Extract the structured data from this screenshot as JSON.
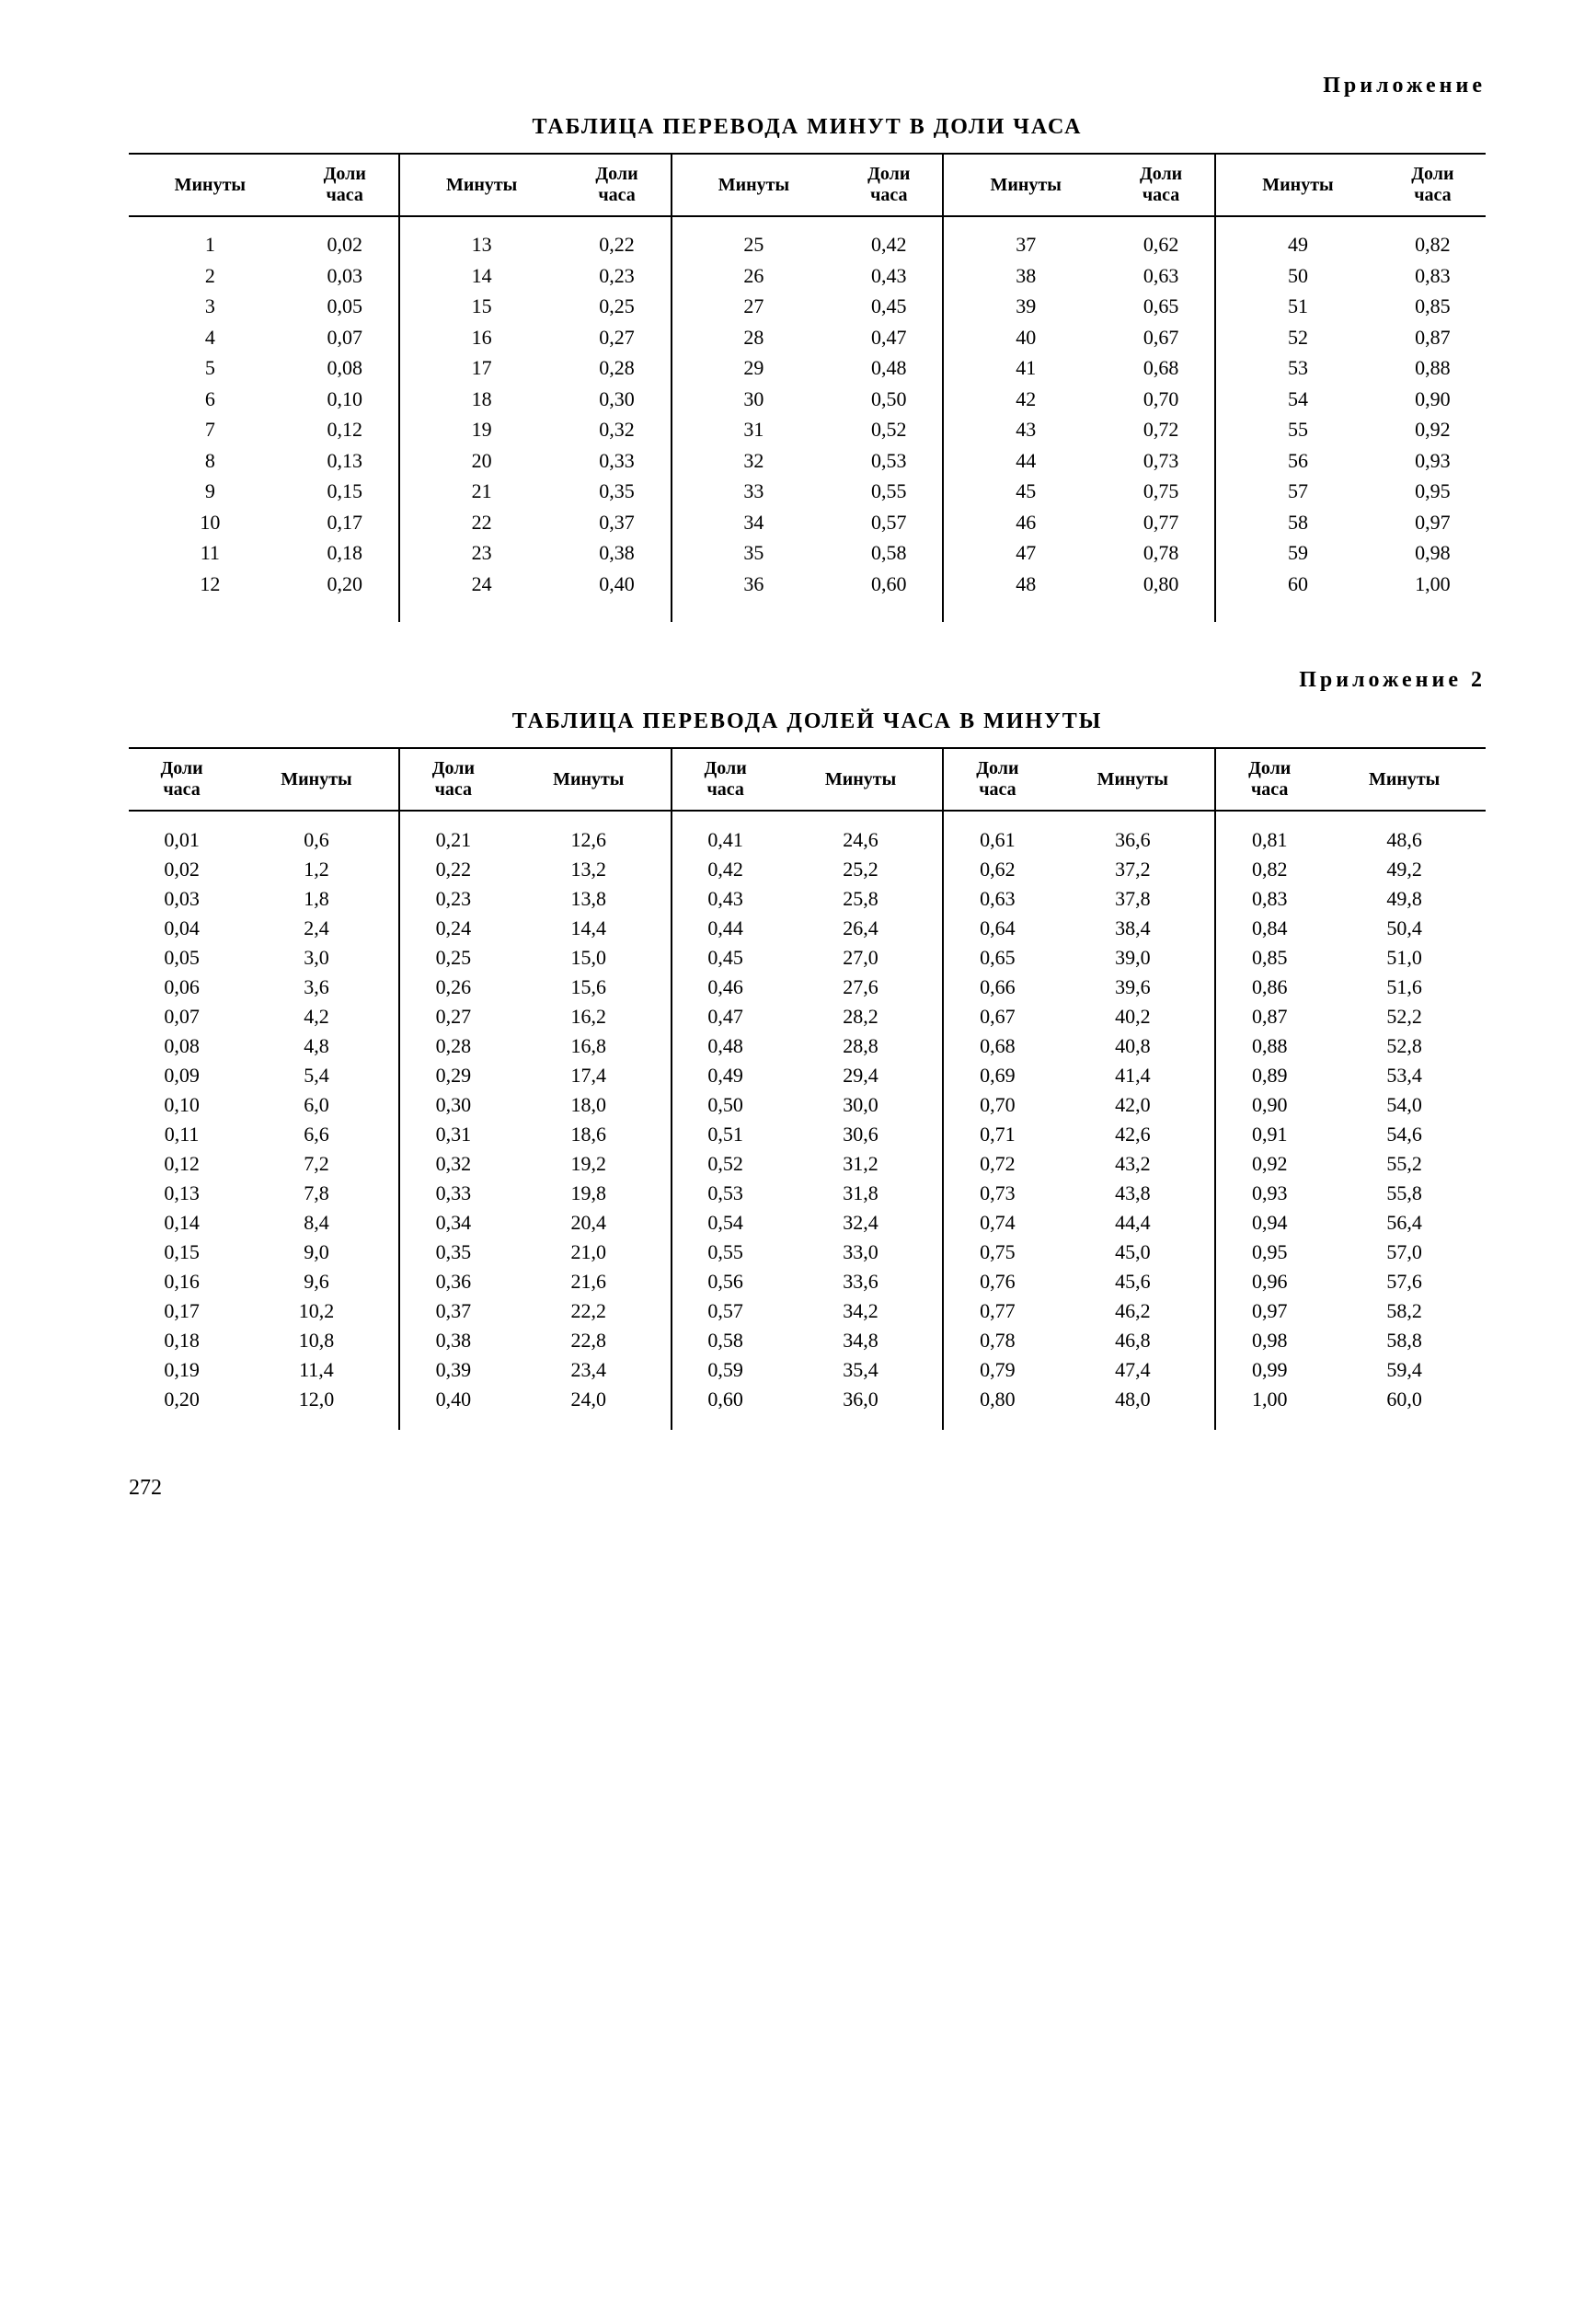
{
  "page_number": "272",
  "appendix1_label": "Приложение",
  "appendix2_label": "Приложение 2",
  "table1": {
    "title": "ТАБЛИЦА ПЕРЕВОДА МИНУТ В ДОЛИ ЧАСА",
    "col_min": "Минуты",
    "col_frac": "Доли часа",
    "groups": [
      [
        [
          "1",
          "0,02"
        ],
        [
          "2",
          "0,03"
        ],
        [
          "3",
          "0,05"
        ],
        [
          "4",
          "0,07"
        ],
        [
          "5",
          "0,08"
        ],
        [
          "6",
          "0,10"
        ],
        [
          "7",
          "0,12"
        ],
        [
          "8",
          "0,13"
        ],
        [
          "9",
          "0,15"
        ],
        [
          "10",
          "0,17"
        ],
        [
          "11",
          "0,18"
        ],
        [
          "12",
          "0,20"
        ]
      ],
      [
        [
          "13",
          "0,22"
        ],
        [
          "14",
          "0,23"
        ],
        [
          "15",
          "0,25"
        ],
        [
          "16",
          "0,27"
        ],
        [
          "17",
          "0,28"
        ],
        [
          "18",
          "0,30"
        ],
        [
          "19",
          "0,32"
        ],
        [
          "20",
          "0,33"
        ],
        [
          "21",
          "0,35"
        ],
        [
          "22",
          "0,37"
        ],
        [
          "23",
          "0,38"
        ],
        [
          "24",
          "0,40"
        ]
      ],
      [
        [
          "25",
          "0,42"
        ],
        [
          "26",
          "0,43"
        ],
        [
          "27",
          "0,45"
        ],
        [
          "28",
          "0,47"
        ],
        [
          "29",
          "0,48"
        ],
        [
          "30",
          "0,50"
        ],
        [
          "31",
          "0,52"
        ],
        [
          "32",
          "0,53"
        ],
        [
          "33",
          "0,55"
        ],
        [
          "34",
          "0,57"
        ],
        [
          "35",
          "0,58"
        ],
        [
          "36",
          "0,60"
        ]
      ],
      [
        [
          "37",
          "0,62"
        ],
        [
          "38",
          "0,63"
        ],
        [
          "39",
          "0,65"
        ],
        [
          "40",
          "0,67"
        ],
        [
          "41",
          "0,68"
        ],
        [
          "42",
          "0,70"
        ],
        [
          "43",
          "0,72"
        ],
        [
          "44",
          "0,73"
        ],
        [
          "45",
          "0,75"
        ],
        [
          "46",
          "0,77"
        ],
        [
          "47",
          "0,78"
        ],
        [
          "48",
          "0,80"
        ]
      ],
      [
        [
          "49",
          "0,82"
        ],
        [
          "50",
          "0,83"
        ],
        [
          "51",
          "0,85"
        ],
        [
          "52",
          "0,87"
        ],
        [
          "53",
          "0,88"
        ],
        [
          "54",
          "0,90"
        ],
        [
          "55",
          "0,92"
        ],
        [
          "56",
          "0,93"
        ],
        [
          "57",
          "0,95"
        ],
        [
          "58",
          "0,97"
        ],
        [
          "59",
          "0,98"
        ],
        [
          "60",
          "1,00"
        ]
      ]
    ]
  },
  "table2": {
    "title": "ТАБЛИЦА ПЕРЕВОДА ДОЛЕЙ ЧАСА В МИНУТЫ",
    "col_frac": "Доли часа",
    "col_min": "Минуты",
    "groups": [
      [
        [
          "0,01",
          "0,6"
        ],
        [
          "0,02",
          "1,2"
        ],
        [
          "0,03",
          "1,8"
        ],
        [
          "0,04",
          "2,4"
        ],
        [
          "0,05",
          "3,0"
        ],
        [
          "0,06",
          "3,6"
        ],
        [
          "0,07",
          "4,2"
        ],
        [
          "0,08",
          "4,8"
        ],
        [
          "0,09",
          "5,4"
        ],
        [
          "0,10",
          "6,0"
        ],
        [
          "0,11",
          "6,6"
        ],
        [
          "0,12",
          "7,2"
        ],
        [
          "0,13",
          "7,8"
        ],
        [
          "0,14",
          "8,4"
        ],
        [
          "0,15",
          "9,0"
        ],
        [
          "0,16",
          "9,6"
        ],
        [
          "0,17",
          "10,2"
        ],
        [
          "0,18",
          "10,8"
        ],
        [
          "0,19",
          "11,4"
        ],
        [
          "0,20",
          "12,0"
        ]
      ],
      [
        [
          "0,21",
          "12,6"
        ],
        [
          "0,22",
          "13,2"
        ],
        [
          "0,23",
          "13,8"
        ],
        [
          "0,24",
          "14,4"
        ],
        [
          "0,25",
          "15,0"
        ],
        [
          "0,26",
          "15,6"
        ],
        [
          "0,27",
          "16,2"
        ],
        [
          "0,28",
          "16,8"
        ],
        [
          "0,29",
          "17,4"
        ],
        [
          "0,30",
          "18,0"
        ],
        [
          "0,31",
          "18,6"
        ],
        [
          "0,32",
          "19,2"
        ],
        [
          "0,33",
          "19,8"
        ],
        [
          "0,34",
          "20,4"
        ],
        [
          "0,35",
          "21,0"
        ],
        [
          "0,36",
          "21,6"
        ],
        [
          "0,37",
          "22,2"
        ],
        [
          "0,38",
          "22,8"
        ],
        [
          "0,39",
          "23,4"
        ],
        [
          "0,40",
          "24,0"
        ]
      ],
      [
        [
          "0,41",
          "24,6"
        ],
        [
          "0,42",
          "25,2"
        ],
        [
          "0,43",
          "25,8"
        ],
        [
          "0,44",
          "26,4"
        ],
        [
          "0,45",
          "27,0"
        ],
        [
          "0,46",
          "27,6"
        ],
        [
          "0,47",
          "28,2"
        ],
        [
          "0,48",
          "28,8"
        ],
        [
          "0,49",
          "29,4"
        ],
        [
          "0,50",
          "30,0"
        ],
        [
          "0,51",
          "30,6"
        ],
        [
          "0,52",
          "31,2"
        ],
        [
          "0,53",
          "31,8"
        ],
        [
          "0,54",
          "32,4"
        ],
        [
          "0,55",
          "33,0"
        ],
        [
          "0,56",
          "33,6"
        ],
        [
          "0,57",
          "34,2"
        ],
        [
          "0,58",
          "34,8"
        ],
        [
          "0,59",
          "35,4"
        ],
        [
          "0,60",
          "36,0"
        ]
      ],
      [
        [
          "0,61",
          "36,6"
        ],
        [
          "0,62",
          "37,2"
        ],
        [
          "0,63",
          "37,8"
        ],
        [
          "0,64",
          "38,4"
        ],
        [
          "0,65",
          "39,0"
        ],
        [
          "0,66",
          "39,6"
        ],
        [
          "0,67",
          "40,2"
        ],
        [
          "0,68",
          "40,8"
        ],
        [
          "0,69",
          "41,4"
        ],
        [
          "0,70",
          "42,0"
        ],
        [
          "0,71",
          "42,6"
        ],
        [
          "0,72",
          "43,2"
        ],
        [
          "0,73",
          "43,8"
        ],
        [
          "0,74",
          "44,4"
        ],
        [
          "0,75",
          "45,0"
        ],
        [
          "0,76",
          "45,6"
        ],
        [
          "0,77",
          "46,2"
        ],
        [
          "0,78",
          "46,8"
        ],
        [
          "0,79",
          "47,4"
        ],
        [
          "0,80",
          "48,0"
        ]
      ],
      [
        [
          "0,81",
          "48,6"
        ],
        [
          "0,82",
          "49,2"
        ],
        [
          "0,83",
          "49,8"
        ],
        [
          "0,84",
          "50,4"
        ],
        [
          "0,85",
          "51,0"
        ],
        [
          "0,86",
          "51,6"
        ],
        [
          "0,87",
          "52,2"
        ],
        [
          "0,88",
          "52,8"
        ],
        [
          "0,89",
          "53,4"
        ],
        [
          "0,90",
          "54,0"
        ],
        [
          "0,91",
          "54,6"
        ],
        [
          "0,92",
          "55,2"
        ],
        [
          "0,93",
          "55,8"
        ],
        [
          "0,94",
          "56,4"
        ],
        [
          "0,95",
          "57,0"
        ],
        [
          "0,96",
          "57,6"
        ],
        [
          "0,97",
          "58,2"
        ],
        [
          "0,98",
          "58,8"
        ],
        [
          "0,99",
          "59,4"
        ],
        [
          "1,00",
          "60,0"
        ]
      ]
    ]
  }
}
